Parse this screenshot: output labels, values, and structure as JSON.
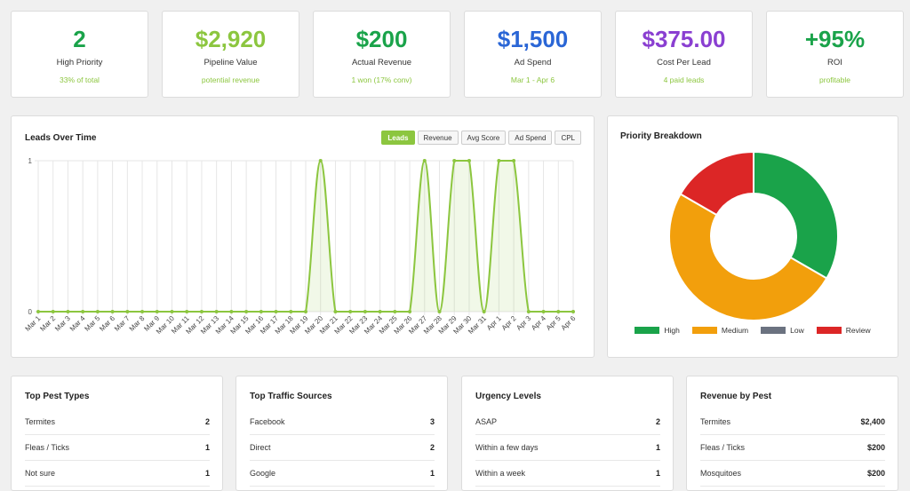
{
  "kpis": [
    {
      "value": "2",
      "label": "High Priority",
      "sub": "33% of total",
      "color": "#1aa34a"
    },
    {
      "value": "$2,920",
      "label": "Pipeline Value",
      "sub": "potential revenue",
      "color": "#8cc63f"
    },
    {
      "value": "$200",
      "label": "Actual Revenue",
      "sub": "1 won (17% conv)",
      "color": "#1aa34a"
    },
    {
      "value": "$1,500",
      "label": "Ad Spend",
      "sub": "Mar 1 - Apr 6",
      "color": "#2a66d6"
    },
    {
      "value": "$375.00",
      "label": "Cost Per Lead",
      "sub": "4 paid leads",
      "color": "#8a3fd1"
    },
    {
      "value": "+95%",
      "label": "ROI",
      "sub": "profitable",
      "color": "#1aa34a"
    }
  ],
  "leads_chart": {
    "title": "Leads Over Time",
    "tabs": [
      {
        "label": "Leads",
        "active": true
      },
      {
        "label": "Revenue",
        "active": false
      },
      {
        "label": "Avg Score",
        "active": false
      },
      {
        "label": "Ad Spend",
        "active": false
      },
      {
        "label": "CPL",
        "active": false
      }
    ]
  },
  "priority": {
    "title": "Priority Breakdown",
    "legend": [
      {
        "label": "High",
        "color": "#1aa34a"
      },
      {
        "label": "Medium",
        "color": "#f29f0c"
      },
      {
        "label": "Low",
        "color": "#6b7280"
      },
      {
        "label": "Review",
        "color": "#dc2626"
      }
    ]
  },
  "chart_data": [
    {
      "type": "line",
      "title": "Leads Over Time",
      "x": [
        "Mar 1",
        "Mar 2",
        "Mar 3",
        "Mar 4",
        "Mar 5",
        "Mar 6",
        "Mar 7",
        "Mar 8",
        "Mar 9",
        "Mar 10",
        "Mar 11",
        "Mar 12",
        "Mar 13",
        "Mar 14",
        "Mar 15",
        "Mar 16",
        "Mar 17",
        "Mar 18",
        "Mar 19",
        "Mar 20",
        "Mar 21",
        "Mar 22",
        "Mar 23",
        "Mar 24",
        "Mar 25",
        "Mar 26",
        "Mar 27",
        "Mar 28",
        "Mar 29",
        "Mar 30",
        "Mar 31",
        "Apr 1",
        "Apr 2",
        "Apr 3",
        "Apr 4",
        "Apr 5",
        "Apr 6"
      ],
      "series": [
        {
          "values": [
            0,
            0,
            0,
            0,
            0,
            0,
            0,
            0,
            0,
            0,
            0,
            0,
            0,
            0,
            0,
            0,
            0,
            0,
            0,
            1,
            0,
            0,
            0,
            0,
            0,
            0,
            1,
            0,
            1,
            1,
            0,
            1,
            1,
            0,
            0,
            0,
            0
          ]
        }
      ],
      "ylim": [
        0,
        1
      ],
      "yticks": [
        "0",
        "1"
      ],
      "color": "#8cc63f",
      "grid": true
    },
    {
      "type": "pie",
      "title": "Priority Breakdown",
      "labels": [
        "High",
        "Medium",
        "Low",
        "Review"
      ],
      "values": [
        2,
        3,
        0,
        1
      ],
      "colors": [
        "#1aa34a",
        "#f29f0c",
        "#6b7280",
        "#dc2626"
      ]
    }
  ],
  "lists": [
    {
      "title": "Top Pest Types",
      "rows": [
        [
          "Termites",
          "2"
        ],
        [
          "Fleas / Ticks",
          "1"
        ],
        [
          "Not sure",
          "1"
        ]
      ]
    },
    {
      "title": "Top Traffic Sources",
      "rows": [
        [
          "Facebook",
          "3"
        ],
        [
          "Direct",
          "2"
        ],
        [
          "Google",
          "1"
        ]
      ]
    },
    {
      "title": "Urgency Levels",
      "rows": [
        [
          "ASAP",
          "2"
        ],
        [
          "Within a few days",
          "1"
        ],
        [
          "Within a week",
          "1"
        ]
      ]
    },
    {
      "title": "Revenue by Pest",
      "rows": [
        [
          "Termites",
          "$2,400"
        ],
        [
          "Fleas / Ticks",
          "$200"
        ],
        [
          "Mosquitoes",
          "$200"
        ]
      ]
    }
  ]
}
